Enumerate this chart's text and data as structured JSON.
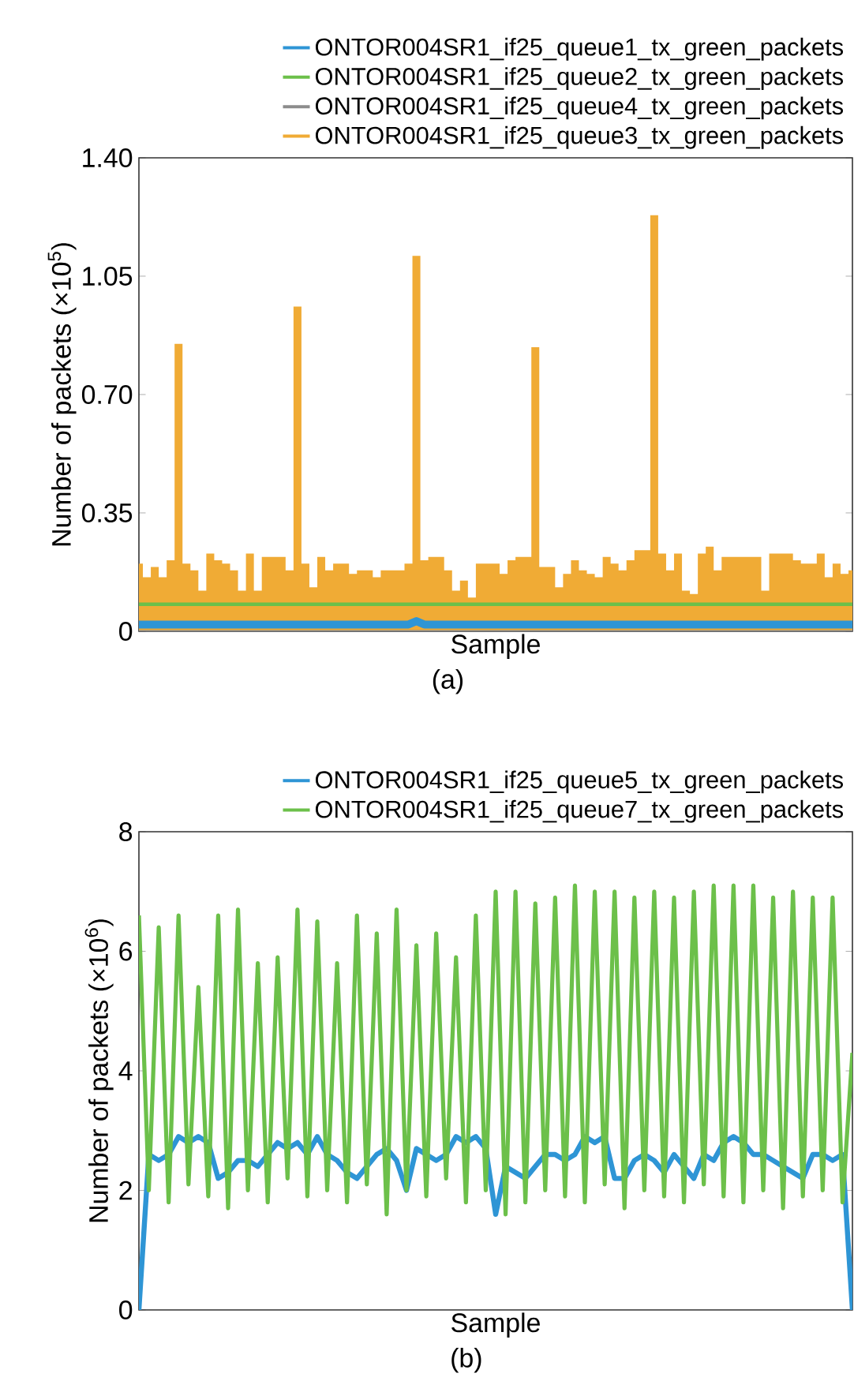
{
  "chart_data": [
    {
      "type": "line",
      "xlabel": "Sample",
      "ylabel": "Number of packets (×10$^{5}$)",
      "annotations": [
        "(a)"
      ],
      "categories": [
        null,
        null,
        null,
        null,
        null,
        null,
        null,
        null,
        null,
        null,
        null,
        null,
        null,
        null,
        null,
        null,
        null,
        null,
        null,
        null,
        null,
        null,
        null,
        null,
        null,
        null,
        null,
        null,
        null,
        null,
        null,
        null,
        null,
        null,
        null,
        null,
        null,
        null,
        null,
        null,
        null,
        null,
        null,
        null,
        null,
        null,
        null,
        null,
        null,
        null,
        null,
        null,
        null,
        null,
        null,
        null,
        null,
        null,
        null,
        null,
        null,
        null,
        null,
        null,
        null,
        null,
        null,
        null,
        null,
        null,
        null,
        null,
        null,
        null,
        null,
        null,
        null,
        null,
        null,
        null,
        null,
        null,
        null,
        null,
        null,
        null,
        null,
        null,
        null,
        null,
        null
      ],
      "ylim": [
        0,
        1.4
      ],
      "yticks": [
        0,
        0.35,
        {
          "value": 0.7,
          "label": "0.70"
        },
        1.05,
        {
          "value": 1.4,
          "label": "1.40"
        }
      ],
      "tick_labels": "y",
      "legend": "top right",
      "marker": "none",
      "line_style": "solid",
      "series": [
        {
          "name": "ONTOR004SR1_if25_queue1_tx_green_packets",
          "color": "#2e95d5",
          "values": [
            0.02,
            0.02,
            0.02,
            0.02,
            0.02,
            0.02,
            0.02,
            0.02,
            0.02,
            0.02,
            0.02,
            0.02,
            0.02,
            0.02,
            0.02,
            0.02,
            0.02,
            0.02,
            0.02,
            0.02,
            0.02,
            0.02,
            0.02,
            0.02,
            0.02,
            0.02,
            0.02,
            0.02,
            0.02,
            0.02,
            0.02,
            0.02,
            0.02,
            0.02,
            0.02,
            0.03,
            0.02,
            0.02,
            0.02,
            0.02,
            0.02,
            0.02,
            0.02,
            0.02,
            0.02,
            0.02,
            0.02,
            0.02,
            0.02,
            0.02,
            0.02,
            0.02,
            0.02,
            0.02,
            0.02,
            0.02,
            0.02,
            0.02,
            0.02,
            0.02,
            0.02,
            0.02,
            0.02,
            0.02,
            0.02,
            0.02,
            0.02,
            0.02,
            0.02,
            0.02,
            0.02,
            0.02,
            0.02,
            0.02,
            0.02,
            0.02,
            0.02,
            0.02,
            0.02,
            0.02,
            0.02,
            0.02,
            0.02,
            0.02,
            0.02,
            0.02,
            0.02,
            0.02,
            0.02,
            0.02,
            0.02
          ]
        },
        {
          "name": "ONTOR004SR1_if25_queue2_tx_green_packets",
          "color": "#6cc04a",
          "values": [
            0.08,
            0.08,
            0.08,
            0.08,
            0.08,
            0.08,
            0.08,
            0.08,
            0.08,
            0.08,
            0.08,
            0.08,
            0.08,
            0.08,
            0.08,
            0.08,
            0.08,
            0.08,
            0.08,
            0.08,
            0.08,
            0.08,
            0.08,
            0.08,
            0.08,
            0.08,
            0.08,
            0.08,
            0.08,
            0.08,
            0.08,
            0.08,
            0.08,
            0.08,
            0.08,
            0.08,
            0.08,
            0.08,
            0.08,
            0.08,
            0.08,
            0.08,
            0.08,
            0.08,
            0.08,
            0.08,
            0.08,
            0.08,
            0.08,
            0.08,
            0.08,
            0.08,
            0.08,
            0.08,
            0.08,
            0.08,
            0.08,
            0.08,
            0.08,
            0.08,
            0.08,
            0.08,
            0.08,
            0.08,
            0.08,
            0.08,
            0.08,
            0.08,
            0.08,
            0.08,
            0.08,
            0.08,
            0.08,
            0.08,
            0.08,
            0.08,
            0.08,
            0.08,
            0.08,
            0.08,
            0.08,
            0.08,
            0.08,
            0.08,
            0.08,
            0.08,
            0.08,
            0.08,
            0.08,
            0.08,
            0.08
          ]
        },
        {
          "name": "ONTOR004SR1_if25_queue4_tx_green_packets",
          "color": "#8c8c8c",
          "values": [
            0,
            0,
            0,
            0,
            0,
            0,
            0,
            0,
            0,
            0,
            0,
            0,
            0,
            0,
            0,
            0,
            0,
            0,
            0,
            0,
            0,
            0,
            0,
            0,
            0,
            0,
            0,
            0,
            0,
            0,
            0,
            0,
            0,
            0,
            0,
            0,
            0,
            0,
            0,
            0,
            0,
            0,
            0,
            0,
            0,
            0,
            0,
            0,
            0,
            0,
            0,
            0,
            0,
            0,
            0,
            0,
            0,
            0,
            0,
            0,
            0,
            0,
            0,
            0,
            0,
            0,
            0,
            0,
            0,
            0,
            0,
            0,
            0,
            0,
            0,
            0,
            0,
            0,
            0,
            0,
            0,
            0,
            0,
            0,
            0,
            0,
            0,
            0,
            0,
            0,
            0
          ]
        },
        {
          "name": "ONTOR004SR1_if25_queue3_tx_green_packets",
          "color": "#f0ab35",
          "type": "area",
          "values": [
            0.2,
            0.16,
            0.19,
            0.16,
            0.21,
            0.85,
            0.2,
            0.18,
            0.12,
            0.23,
            0.21,
            0.2,
            0.18,
            0.12,
            0.23,
            0.12,
            0.22,
            0.22,
            0.22,
            0.18,
            0.96,
            0.2,
            0.13,
            0.22,
            0.18,
            0.2,
            0.2,
            0.17,
            0.18,
            0.18,
            0.16,
            0.18,
            0.18,
            0.18,
            0.2,
            1.11,
            0.21,
            0.22,
            0.22,
            0.18,
            0.12,
            0.15,
            0.1,
            0.2,
            0.2,
            0.2,
            0.17,
            0.21,
            0.22,
            0.22,
            0.84,
            0.19,
            0.19,
            0.13,
            0.17,
            0.21,
            0.18,
            0.17,
            0.16,
            0.22,
            0.2,
            0.18,
            0.21,
            0.24,
            0.24,
            1.23,
            0.23,
            0.18,
            0.23,
            0.12,
            0.11,
            0.23,
            0.25,
            0.18,
            0.22,
            0.22,
            0.22,
            0.22,
            0.22,
            0.12,
            0.23,
            0.23,
            0.23,
            0.21,
            0.2,
            0.2,
            0.23,
            0.16,
            0.2,
            0.17,
            0.18
          ]
        }
      ]
    },
    {
      "type": "line",
      "xlabel": "Sample",
      "ylabel": "Number of packets (×10$^{6}$)",
      "annotations": [
        "(b)"
      ],
      "categories": [
        null,
        null,
        null,
        null,
        null,
        null,
        null,
        null,
        null,
        null,
        null,
        null,
        null,
        null,
        null,
        null,
        null,
        null,
        null,
        null,
        null,
        null,
        null,
        null,
        null,
        null,
        null,
        null,
        null,
        null,
        null,
        null,
        null,
        null,
        null,
        null,
        null,
        null,
        null,
        null,
        null,
        null,
        null,
        null,
        null,
        null,
        null,
        null,
        null,
        null,
        null,
        null,
        null,
        null,
        null,
        null,
        null,
        null,
        null,
        null,
        null,
        null,
        null,
        null,
        null,
        null,
        null,
        null,
        null,
        null,
        null,
        null,
        null
      ],
      "ylim": [
        0,
        8
      ],
      "yticks": [
        0,
        2,
        4,
        6,
        8
      ],
      "tick_labels": "y",
      "legend": "top right",
      "marker": "none",
      "line_style": "solid",
      "series": [
        {
          "name": "ONTOR004SR1_if25_queue5_tx_green_packets",
          "color": "#2e95d5",
          "values": [
            0,
            2.6,
            2.5,
            2.6,
            2.9,
            2.8,
            2.9,
            2.8,
            2.2,
            2.3,
            2.5,
            2.5,
            2.4,
            2.6,
            2.8,
            2.7,
            2.8,
            2.6,
            2.9,
            2.6,
            2.5,
            2.3,
            2.2,
            2.4,
            2.6,
            2.7,
            2.5,
            2.0,
            2.7,
            2.6,
            2.5,
            2.6,
            2.9,
            2.8,
            2.9,
            2.7,
            1.6,
            2.4,
            2.3,
            2.2,
            2.4,
            2.6,
            2.6,
            2.5,
            2.6,
            2.9,
            2.8,
            2.9,
            2.2,
            2.2,
            2.5,
            2.6,
            2.5,
            2.3,
            2.6,
            2.4,
            2.2,
            2.6,
            2.5,
            2.8,
            2.9,
            2.8,
            2.6,
            2.6,
            2.5,
            2.4,
            2.3,
            2.2,
            2.6,
            2.6,
            2.5,
            2.6,
            0
          ]
        },
        {
          "name": "ONTOR004SR1_if25_queue7_tx_green_packets",
          "color": "#6cc04a",
          "values": [
            6.6,
            2.0,
            6.4,
            1.8,
            6.6,
            2.1,
            5.4,
            1.9,
            6.6,
            1.7,
            6.7,
            2.0,
            5.8,
            1.8,
            5.9,
            2.2,
            6.7,
            1.9,
            6.5,
            2.0,
            5.8,
            1.8,
            6.6,
            2.1,
            6.3,
            1.6,
            6.7,
            2.0,
            6.1,
            1.9,
            6.3,
            2.2,
            5.9,
            1.8,
            6.6,
            2.0,
            7.0,
            1.6,
            7.0,
            1.8,
            6.8,
            2.0,
            6.9,
            1.9,
            7.1,
            1.8,
            7.0,
            2.1,
            7.0,
            1.7,
            6.9,
            2.0,
            7.0,
            1.9,
            6.9,
            1.8,
            7.0,
            2.1,
            7.1,
            1.9,
            7.1,
            1.8,
            7.1,
            2.0,
            6.9,
            1.7,
            7.0,
            1.9,
            6.9,
            2.0,
            6.9,
            1.8,
            4.3
          ]
        }
      ]
    }
  ]
}
